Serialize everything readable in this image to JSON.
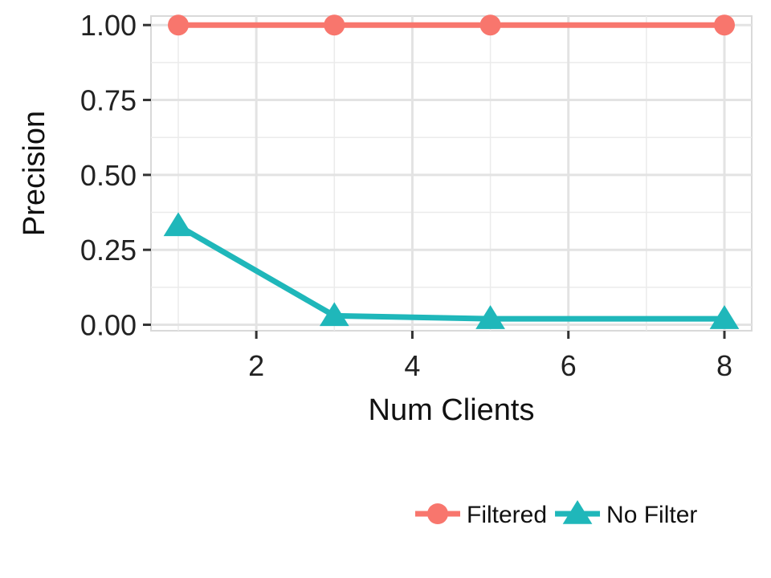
{
  "chart_data": {
    "type": "line",
    "x": [
      1,
      3,
      5,
      8
    ],
    "series": [
      {
        "name": "Filtered",
        "values": [
          1.0,
          1.0,
          1.0,
          1.0
        ],
        "color": "#F8766D",
        "marker": "circle"
      },
      {
        "name": "No Filter",
        "values": [
          0.33,
          0.03,
          0.02,
          0.02
        ],
        "color": "#1FB7BA",
        "marker": "triangle"
      }
    ],
    "xlabel": "Num Clients",
    "ylabel": "Precision",
    "xlim": [
      0.65,
      8.35
    ],
    "ylim": [
      -0.02,
      1.03
    ],
    "xticks": [
      2,
      4,
      6,
      8
    ],
    "xtick_labels": [
      "2",
      "4",
      "6",
      "8"
    ],
    "yticks": [
      0,
      0.25,
      0.5,
      0.75,
      1.0
    ],
    "ytick_labels": [
      "0.00",
      "0.25",
      "0.50",
      "0.75",
      "1.00"
    ],
    "grid": true,
    "legend_position": "bottom-right"
  }
}
